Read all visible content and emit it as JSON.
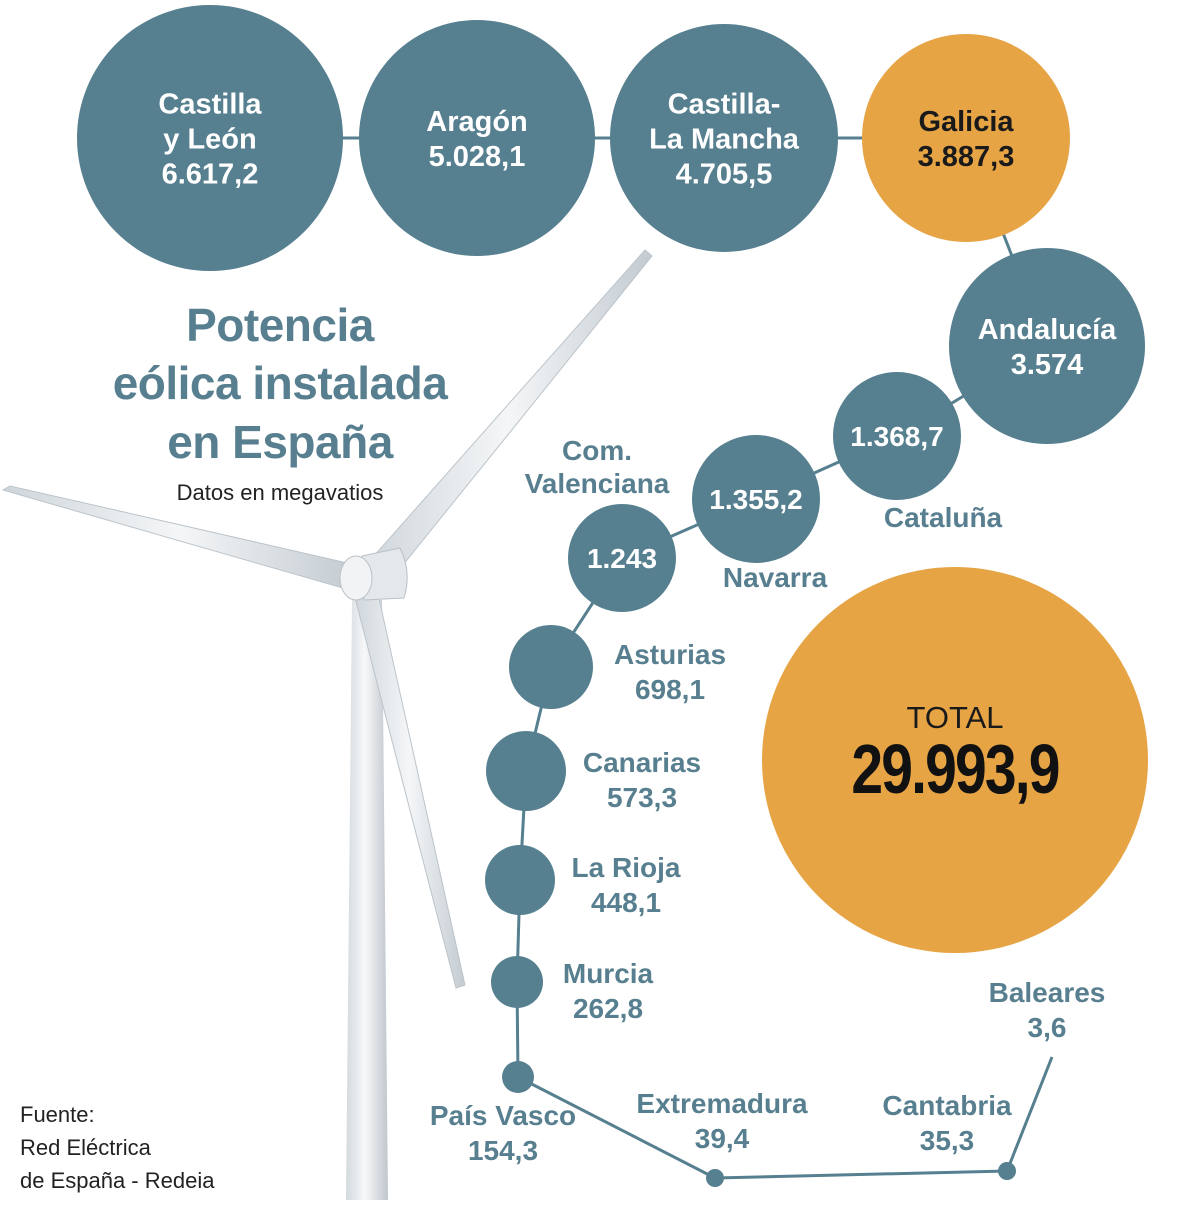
{
  "title_lines": [
    "Potencia",
    "eólica instalada",
    "en España"
  ],
  "subtitle": "Datos en megavatios",
  "source_lines": [
    "Fuente:",
    "Red Eléctrica",
    "de España - Redeia"
  ],
  "colors": {
    "bubble": "#567f8f",
    "highlight": "#e6a445",
    "text_light": "#ffffff",
    "text_dark": "#1a1a1a",
    "label": "#587f8f"
  },
  "chart_data": {
    "type": "bubble",
    "unit": "megavatios",
    "series": [
      {
        "region": "Castilla y León",
        "value": 6617.2,
        "label_lines": [
          "Castilla",
          "y León",
          "6.617,2"
        ],
        "highlight": false
      },
      {
        "region": "Aragón",
        "value": 5028.1,
        "label_lines": [
          "Aragón",
          "5.028,1"
        ],
        "highlight": false
      },
      {
        "region": "Castilla-La Mancha",
        "value": 4705.5,
        "label_lines": [
          "Castilla-",
          "La Mancha",
          "4.705,5"
        ],
        "highlight": false
      },
      {
        "region": "Galicia",
        "value": 3887.3,
        "label_lines": [
          "Galicia",
          "3.887,3"
        ],
        "highlight": true
      },
      {
        "region": "Andalucía",
        "value": 3574,
        "label_lines": [
          "Andalucía",
          "3.574"
        ],
        "highlight": false
      },
      {
        "region": "Cataluña",
        "value": 1368.7,
        "label_lines": [
          "Cataluña",
          "1.368,7"
        ],
        "highlight": false
      },
      {
        "region": "Navarra",
        "value": 1355.2,
        "label_lines": [
          "Navarra",
          "1.355,2"
        ],
        "highlight": false
      },
      {
        "region": "Com. Valenciana",
        "value": 1243,
        "label_lines": [
          "Com.",
          "Valenciana",
          "1.243"
        ],
        "highlight": false
      },
      {
        "region": "Asturias",
        "value": 698.1,
        "label_lines": [
          "Asturias",
          "698,1"
        ],
        "highlight": false
      },
      {
        "region": "Canarias",
        "value": 573.3,
        "label_lines": [
          "Canarias",
          "573,3"
        ],
        "highlight": false
      },
      {
        "region": "La Rioja",
        "value": 448.1,
        "label_lines": [
          "La Rioja",
          "448,1"
        ],
        "highlight": false
      },
      {
        "region": "Murcia",
        "value": 262.8,
        "label_lines": [
          "Murcia",
          "262,8"
        ],
        "highlight": false
      },
      {
        "region": "País Vasco",
        "value": 154.3,
        "label_lines": [
          "País Vasco",
          "154,3"
        ],
        "highlight": false
      },
      {
        "region": "Extremadura",
        "value": 39.4,
        "label_lines": [
          "Extremadura",
          "39,4"
        ],
        "highlight": false
      },
      {
        "region": "Cantabria",
        "value": 35.3,
        "label_lines": [
          "Cantabria",
          "35,3"
        ],
        "highlight": false
      },
      {
        "region": "Baleares",
        "value": 3.6,
        "label_lines": [
          "Baleares",
          "3,6"
        ],
        "highlight": false
      }
    ],
    "total": {
      "label": "TOTAL",
      "value": 29993.9,
      "value_text": "29.993,9",
      "highlight": true
    }
  }
}
